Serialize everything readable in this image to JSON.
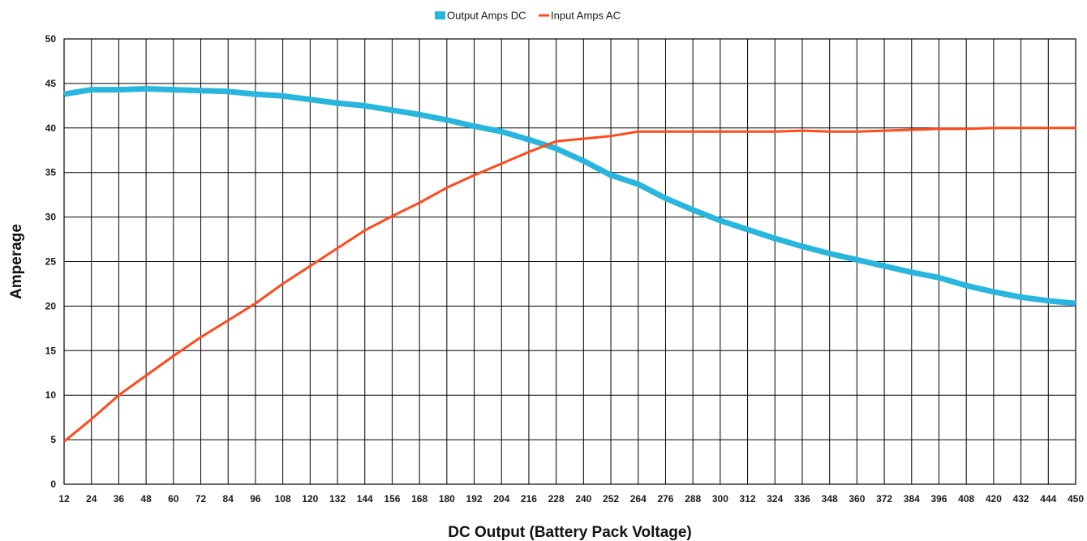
{
  "chart_data": {
    "type": "line",
    "title": "",
    "xlabel": "DC Output (Battery Pack Voltage)",
    "ylabel": "Amperage",
    "x": [
      12,
      24,
      36,
      48,
      60,
      72,
      84,
      96,
      108,
      120,
      132,
      144,
      156,
      168,
      180,
      192,
      204,
      216,
      228,
      240,
      252,
      264,
      276,
      288,
      300,
      312,
      324,
      336,
      348,
      360,
      372,
      384,
      396,
      408,
      420,
      432,
      444,
      450
    ],
    "ylim": [
      0,
      50
    ],
    "yticks": [
      0,
      5,
      10,
      15,
      20,
      25,
      30,
      35,
      40,
      45,
      50
    ],
    "grid": true,
    "legend_position": "top-center",
    "series": [
      {
        "name": "Output Amps DC",
        "color": "#29B6DE",
        "values": [
          43.8,
          44.3,
          44.3,
          44.4,
          44.3,
          44.2,
          44.1,
          43.8,
          43.6,
          43.2,
          42.8,
          42.5,
          42.0,
          41.5,
          40.9,
          40.2,
          39.6,
          38.7,
          37.7,
          36.3,
          34.7,
          33.7,
          32.1,
          30.8,
          29.6,
          28.6,
          27.6,
          26.7,
          25.9,
          25.2,
          24.5,
          23.8,
          23.2,
          22.3,
          21.6,
          21.0,
          20.6,
          20.3
        ]
      },
      {
        "name": "Input Amps AC",
        "color": "#FF4A1C",
        "values": [
          4.8,
          7.3,
          10.0,
          12.2,
          14.4,
          16.5,
          18.4,
          20.3,
          22.5,
          24.5,
          26.5,
          28.5,
          30.1,
          31.6,
          33.3,
          34.7,
          36.0,
          37.3,
          38.5,
          38.8,
          39.1,
          39.6,
          39.6,
          39.6,
          39.6,
          39.6,
          39.6,
          39.7,
          39.6,
          39.6,
          39.7,
          39.8,
          39.9,
          39.9,
          40.0,
          40.0,
          40.0,
          40.0
        ]
      }
    ]
  }
}
